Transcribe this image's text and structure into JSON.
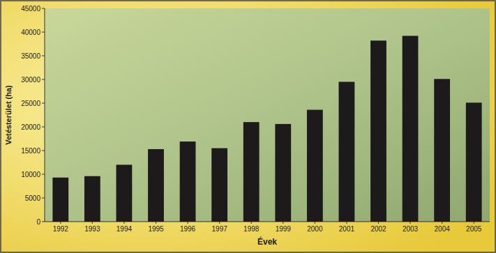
{
  "chart_data": {
    "type": "bar",
    "x_label": "Évek",
    "y_label": "Vetésterület (ha)",
    "categories": [
      "1992",
      "1993",
      "1994",
      "1995",
      "1996",
      "1997",
      "1998",
      "1999",
      "2000",
      "2001",
      "2002",
      "2003",
      "2004",
      "2005"
    ],
    "values": [
      9300,
      9600,
      12000,
      15300,
      16900,
      15500,
      21000,
      20600,
      23600,
      29500,
      38200,
      39200,
      30100,
      25100
    ],
    "color": "#1c1a1a",
    "ylim": [
      0,
      45000
    ],
    "yticks": [
      0,
      5000,
      10000,
      15000,
      20000,
      25000,
      30000,
      35000,
      40000,
      45000
    ],
    "grid": false
  }
}
